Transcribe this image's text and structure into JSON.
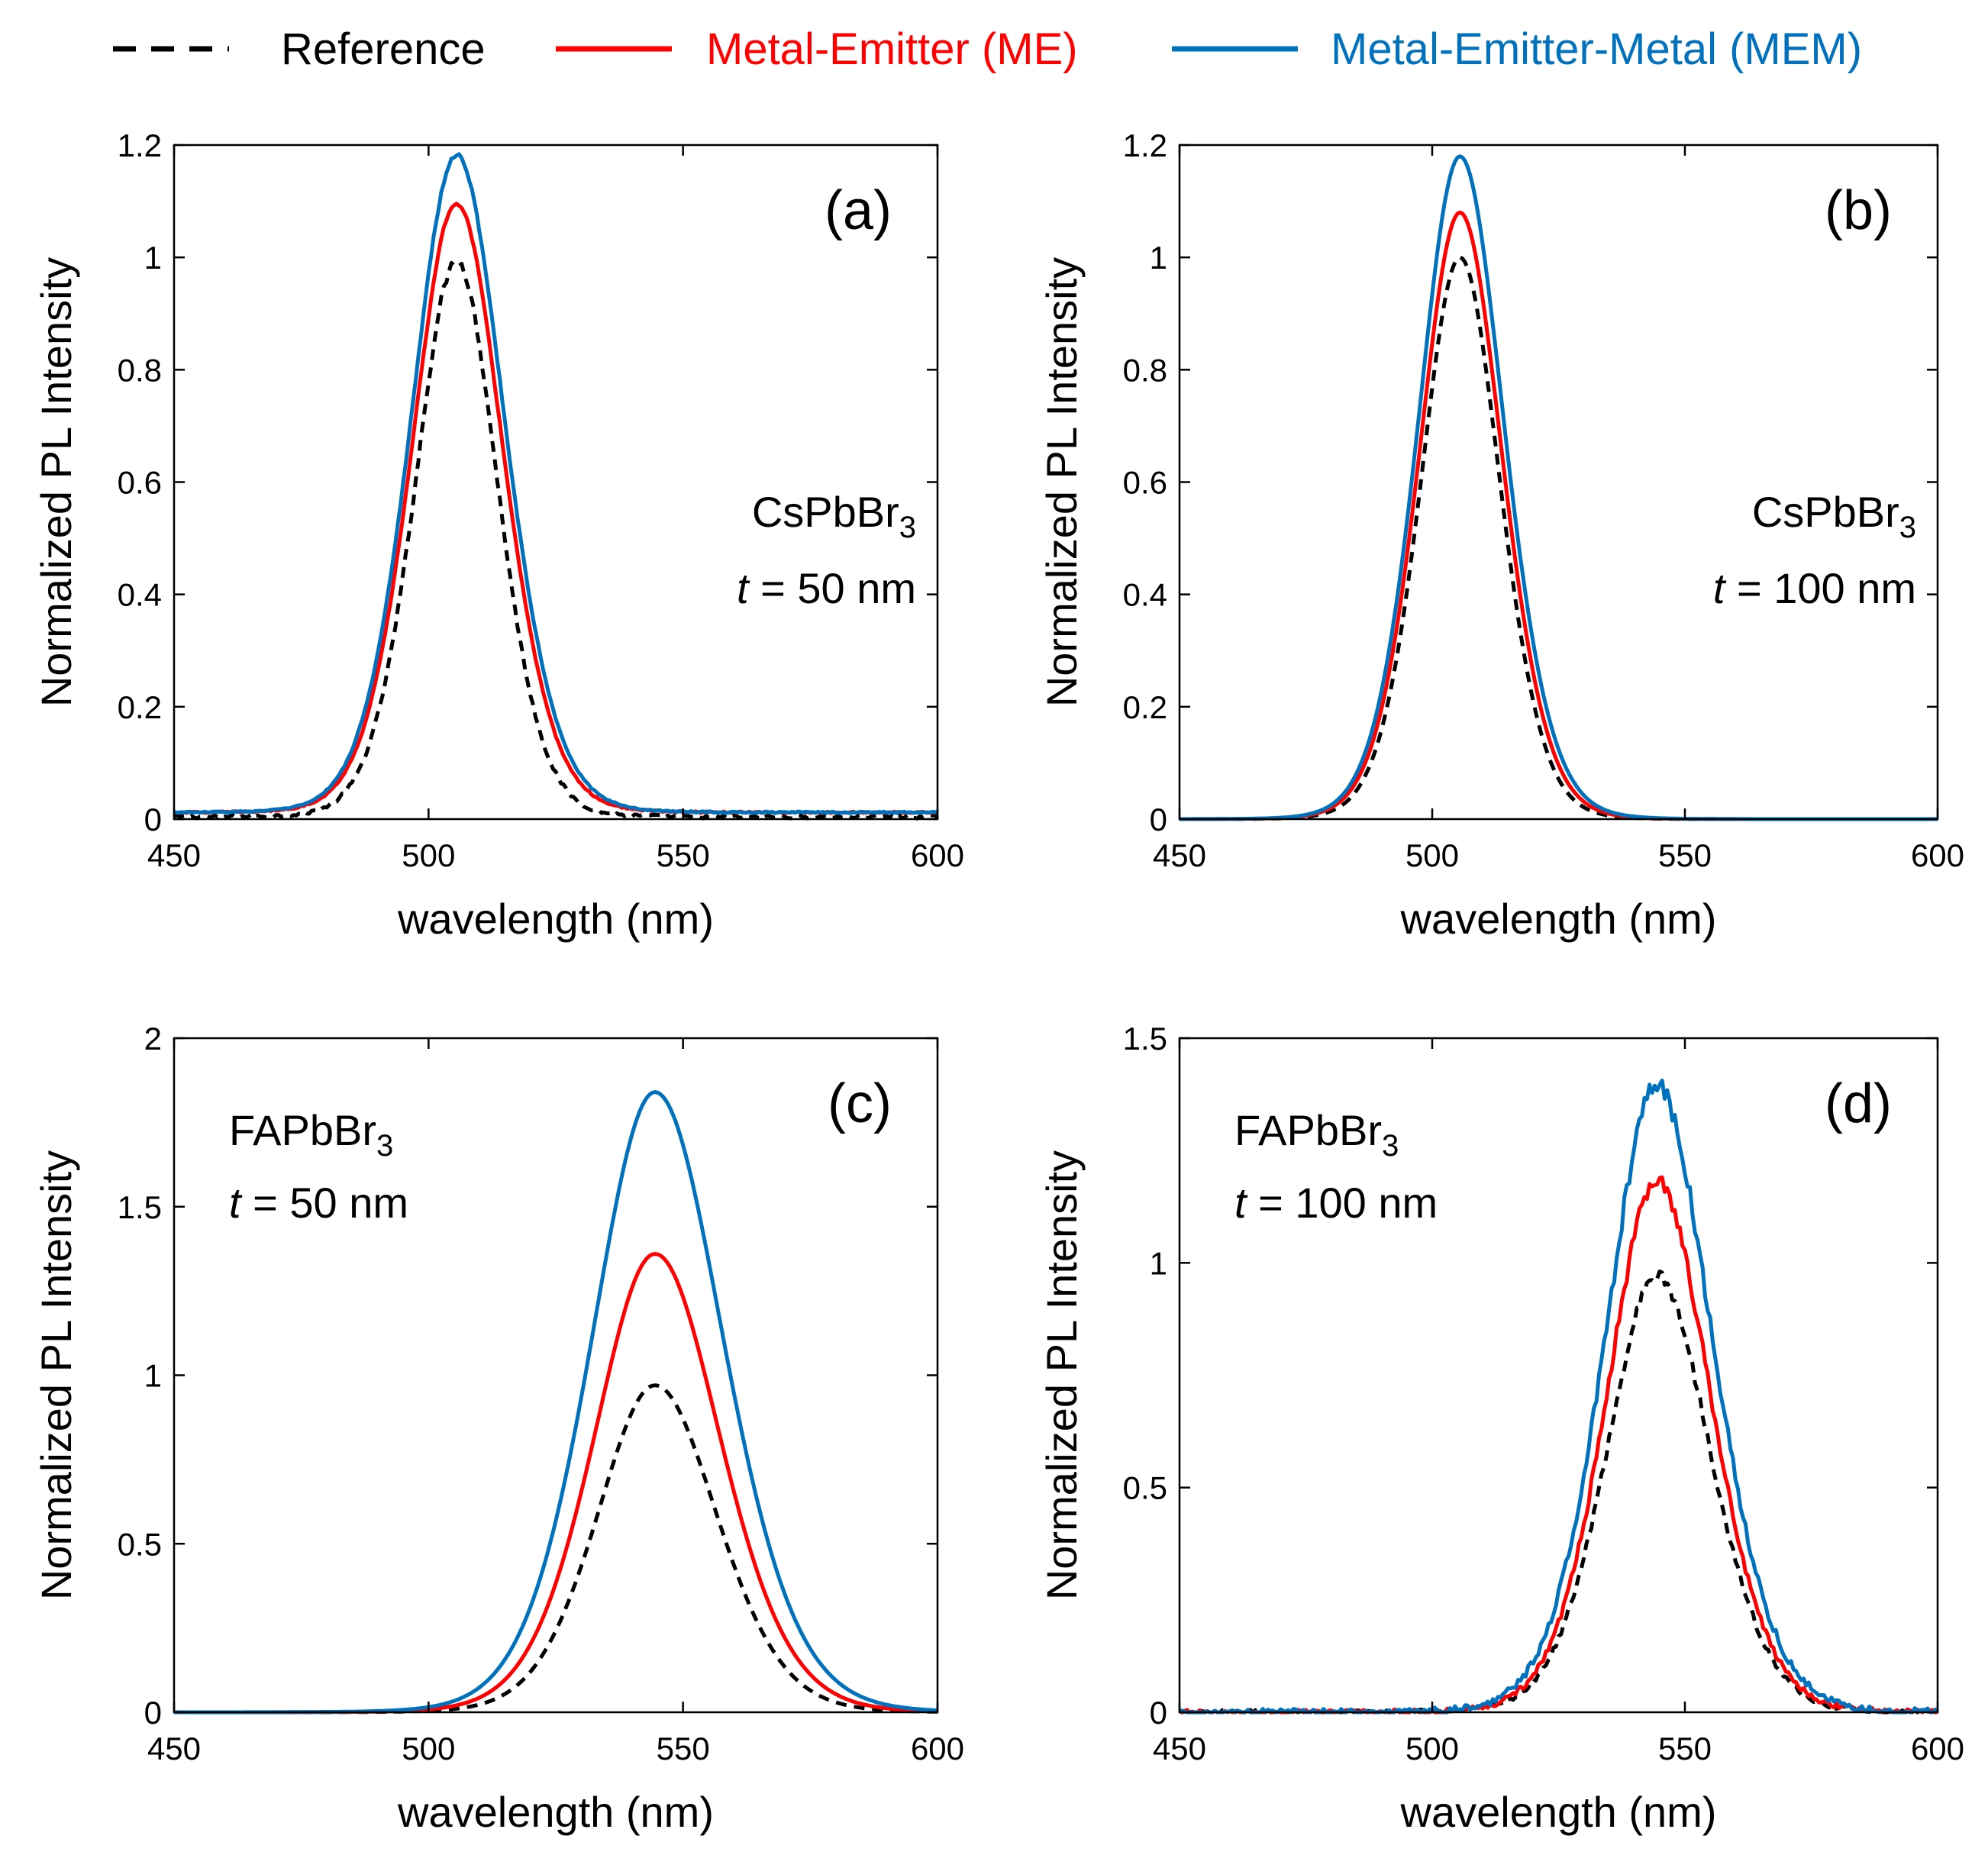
{
  "legend": {
    "items": [
      {
        "label": "Reference",
        "color": "#000000",
        "dash": true
      },
      {
        "label": "Metal-Emitter (ME)",
        "color": "#ff0000",
        "dash": false
      },
      {
        "label": "Metal-Emitter-Metal (MEM)",
        "color": "#0072bd",
        "dash": false
      }
    ]
  },
  "chart_data": [
    {
      "type": "line",
      "tag": "(a)",
      "material": {
        "base": "CsPbBr",
        "sub": "3"
      },
      "thickness": {
        "var": "t",
        "rest": " = 50 nm"
      },
      "xlabel": "wavelength (nm)",
      "ylabel": "Normalized PL Intensity",
      "xlim": [
        450,
        600
      ],
      "ylim": [
        0,
        1.2
      ],
      "xticks": [
        "450",
        "500",
        "550",
        "600"
      ],
      "yticks": [
        "0",
        "0.2",
        "0.4",
        "0.6",
        "0.8",
        "1",
        "1.2"
      ],
      "peak_nm": 505.5,
      "series": [
        {
          "name": "Reference",
          "amplitude": 0.99,
          "width_l": 9.6,
          "width_r": 9.6,
          "baseline": 0.004,
          "noise": 0.01
        },
        {
          "name": "Metal-Emitter (ME)",
          "amplitude": 1.085,
          "width_l": 10.4,
          "width_r": 10.8,
          "baseline": 0.012,
          "noise": 0.004
        },
        {
          "name": "Metal-Emitter-Metal (MEM)",
          "amplitude": 1.17,
          "width_l": 10.6,
          "width_r": 11.2,
          "baseline": 0.012,
          "noise": 0.004
        }
      ]
    },
    {
      "type": "line",
      "tag": "(b)",
      "material": {
        "base": "CsPbBr",
        "sub": "3"
      },
      "thickness": {
        "var": "t",
        "rest": " = 100 nm"
      },
      "xlabel": "wavelength (nm)",
      "ylabel": "Normalized PL Intensity",
      "xlim": [
        450,
        600
      ],
      "ylim": [
        0,
        1.2
      ],
      "xticks": [
        "450",
        "500",
        "550",
        "600"
      ],
      "yticks": [
        "0",
        "0.2",
        "0.4",
        "0.6",
        "0.8",
        "1",
        "1.2"
      ],
      "peak_nm": 505.5,
      "series": [
        {
          "name": "Reference",
          "amplitude": 1.0,
          "width_l": 9.2,
          "width_r": 9.4,
          "baseline": 0.0,
          "noise": 0.0
        },
        {
          "name": "Metal-Emitter (ME)",
          "amplitude": 1.08,
          "width_l": 9.6,
          "width_r": 9.9,
          "baseline": 0.0,
          "noise": 0.0
        },
        {
          "name": "Metal-Emitter-Metal (MEM)",
          "amplitude": 1.18,
          "width_l": 9.8,
          "width_r": 10.3,
          "baseline": 0.0,
          "noise": 0.0
        }
      ]
    },
    {
      "type": "line",
      "tag": "(c)",
      "material": {
        "base": "FAPbBr",
        "sub": "3"
      },
      "thickness": {
        "var": "t",
        "rest": " = 50 nm"
      },
      "xlabel": "wavelength (nm)",
      "ylabel": "Normalized PL Intensity",
      "xlim": [
        450,
        600
      ],
      "ylim": [
        0,
        2
      ],
      "xticks": [
        "450",
        "500",
        "550",
        "600"
      ],
      "yticks": [
        "0",
        "0.5",
        "1",
        "1.5",
        "2"
      ],
      "peak_nm": 544.5,
      "series": [
        {
          "name": "Reference",
          "amplitude": 0.97,
          "width_l": 13.5,
          "width_r": 14.5,
          "baseline": 0.0,
          "noise": 0.0
        },
        {
          "name": "Metal-Emitter (ME)",
          "amplitude": 1.36,
          "width_l": 14.2,
          "width_r": 15.2,
          "baseline": 0.0,
          "noise": 0.0
        },
        {
          "name": "Metal-Emitter-Metal (MEM)",
          "amplitude": 1.84,
          "width_l": 14.8,
          "width_r": 16.0,
          "baseline": 0.0,
          "noise": 0.0
        }
      ]
    },
    {
      "type": "line",
      "tag": "(d)",
      "material": {
        "base": "FAPbBr",
        "sub": "3"
      },
      "thickness": {
        "var": "t",
        "rest": " = 100 nm"
      },
      "xlabel": "wavelength (nm)",
      "ylabel": "Normalized PL Intensity",
      "xlim": [
        450,
        600
      ],
      "ylim": [
        0,
        1.5
      ],
      "xticks": [
        "450",
        "500",
        "550",
        "600"
      ],
      "yticks": [
        "0",
        "0.5",
        "1",
        "1.5"
      ],
      "peak_nm": 544.5,
      "series": [
        {
          "name": "Reference",
          "amplitude": 0.97,
          "width_l": 11.8,
          "width_r": 12.5,
          "baseline": 0.0,
          "noise": 0.018
        },
        {
          "name": "Metal-Emitter (ME)",
          "amplitude": 1.18,
          "width_l": 11.8,
          "width_r": 12.5,
          "baseline": 0.0,
          "noise": 0.02
        },
        {
          "name": "Metal-Emitter-Metal (MEM)",
          "amplitude": 1.39,
          "width_l": 12.2,
          "width_r": 13.0,
          "baseline": 0.0,
          "noise": 0.025
        }
      ]
    }
  ]
}
